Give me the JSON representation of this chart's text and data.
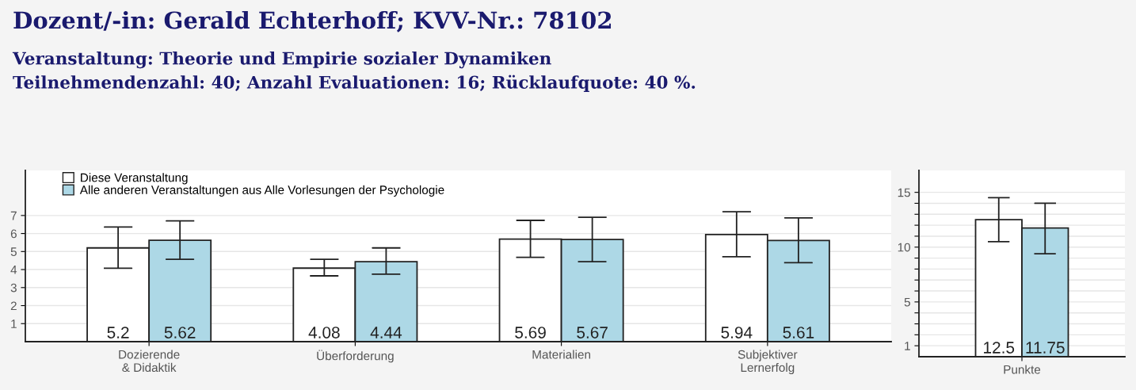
{
  "chart_data": [
    {
      "type": "bar",
      "title": "Dozent/-in: Gerald Echterhoff; KVV-Nr.: 78102",
      "subtitle": "Veranstaltung: Theorie und Empirie sozialer Dynamiken\nTeilnehmendenzahl: 40; Anzahl Evaluationen: 16; Rücklaufquote: 40 %.",
      "categories": [
        "Dozierende\n& Didaktik",
        "Überforderung",
        "Materialien",
        "Subjektiver\nLernerfolg"
      ],
      "series": [
        {
          "name": "Diese Veranstaltung",
          "color": "#ffffff",
          "values": [
            5.2,
            4.08,
            5.69,
            5.94
          ],
          "errors": [
            [
              4.07,
              6.36
            ],
            [
              3.65,
              4.57
            ],
            [
              4.68,
              6.73
            ],
            [
              4.71,
              7.21
            ]
          ]
        },
        {
          "name": "Alle anderen Veranstaltungen aus Alle Vorlesungen der Psychologie",
          "color": "#add8e6",
          "values": [
            5.62,
            4.44,
            5.67,
            5.61
          ],
          "errors": [
            [
              4.57,
              6.7
            ],
            [
              3.74,
              5.2
            ],
            [
              4.44,
              6.9
            ],
            [
              4.38,
              6.87
            ]
          ]
        }
      ],
      "ylim": [
        0,
        9.5
      ],
      "yticks": [
        1,
        2,
        3,
        4,
        5,
        6,
        7
      ],
      "grid": "y",
      "legend": "top left",
      "data_labels": true
    },
    {
      "type": "bar",
      "categories": [
        "Punkte"
      ],
      "series": [
        {
          "color": "#ffffff",
          "values": [
            12.5
          ],
          "errors": [
            [
              10.5,
              14.52
            ]
          ]
        },
        {
          "color": "#add8e6",
          "values": [
            11.75
          ],
          "errors": [
            [
              9.4,
              14.0
            ]
          ]
        }
      ],
      "ylim": [
        0,
        17
      ],
      "yticks": [
        1,
        {
          "value": 2,
          "label": null
        },
        {
          "value": 3,
          "label": null
        },
        {
          "value": 4,
          "label": null
        },
        5,
        {
          "value": 6,
          "label": null
        },
        {
          "value": 7,
          "label": null
        },
        {
          "value": 8,
          "label": null
        },
        {
          "value": 9,
          "label": null
        },
        10,
        {
          "value": 11,
          "label": null
        },
        {
          "value": 12,
          "label": null
        },
        {
          "value": 13,
          "label": null
        },
        {
          "value": 14,
          "label": null
        },
        15
      ],
      "grid": "y",
      "data_labels": true
    }
  ]
}
